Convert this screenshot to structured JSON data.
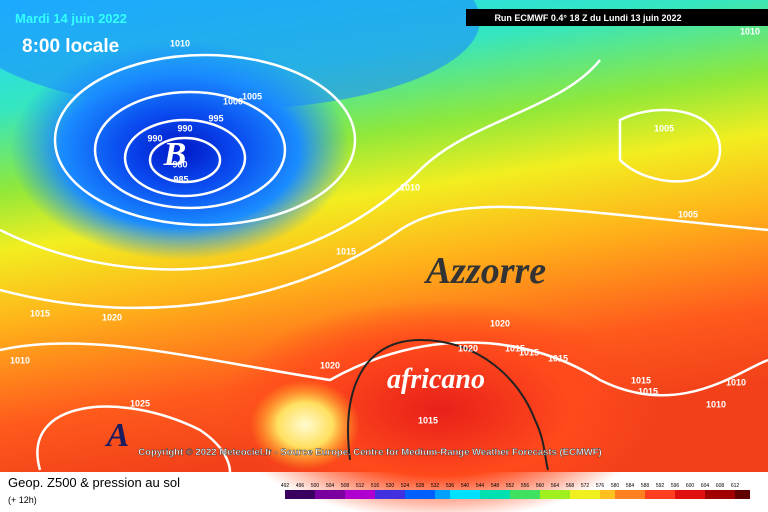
{
  "header": {
    "date": "Mardi 14 juin 2022",
    "time": "8:00 locale",
    "run": "Run ECMWF 0.4° 18 Z du Lundi 13 juin 2022"
  },
  "map": {
    "low_label": "B",
    "high_label": "A",
    "feature_labels": [
      "Azzorre",
      "africano"
    ],
    "isobar_labels": [
      "1010",
      "1005",
      "1000",
      "995",
      "990",
      "990",
      "980",
      "985",
      "1005",
      "1010",
      "1005",
      "1015",
      "1015",
      "1020",
      "1010",
      "1020",
      "1020",
      "1015",
      "1015",
      "1015",
      "1020",
      "1015",
      "1015",
      "1010",
      "1010",
      "1025",
      "1015",
      "1010"
    ],
    "copyright": "Copyright © 2022 Meteociel.fr - Source Europe. Centre for Medium-Range Weather Forecasts (ECMWF)"
  },
  "footer": {
    "title": "Geop. Z500 & pression au sol",
    "step": "(+ 12h)",
    "scale_labels": [
      "492",
      "496",
      "500",
      "504",
      "508",
      "512",
      "516",
      "520",
      "524",
      "528",
      "532",
      "536",
      "540",
      "544",
      "548",
      "552",
      "556",
      "560",
      "564",
      "568",
      "572",
      "576",
      "580",
      "584",
      "588",
      "592",
      "596",
      "600",
      "604",
      "608",
      "612"
    ]
  }
}
